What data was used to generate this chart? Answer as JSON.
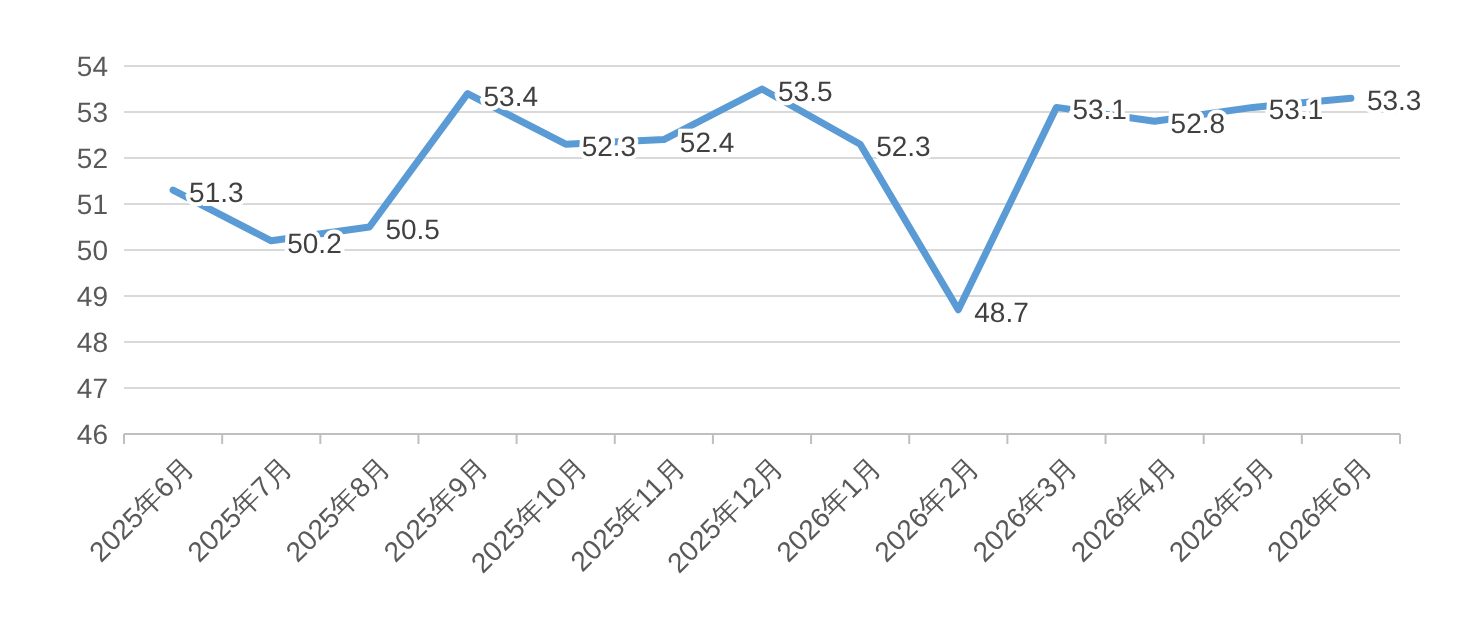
{
  "chart_data": {
    "type": "line",
    "categories": [
      "2025年6月",
      "2025年7月",
      "2025年8月",
      "2025年9月",
      "2025年10月",
      "2025年11月",
      "2025年12月",
      "2026年1月",
      "2026年2月",
      "2026年3月",
      "2026年4月",
      "2026年5月",
      "2026年6月"
    ],
    "series": [
      {
        "color": "#5b9bd5",
        "values": [
          51.3,
          50.2,
          50.5,
          53.4,
          52.3,
          52.4,
          53.5,
          52.3,
          48.7,
          53.1,
          52.8,
          53.1,
          53.3
        ]
      }
    ],
    "ylim": [
      46,
      54
    ],
    "yticks": [
      46,
      47,
      48,
      49,
      50,
      51,
      52,
      53,
      54
    ],
    "grid": "y",
    "data_labels": true,
    "marker": "none",
    "line_style": "solid"
  }
}
